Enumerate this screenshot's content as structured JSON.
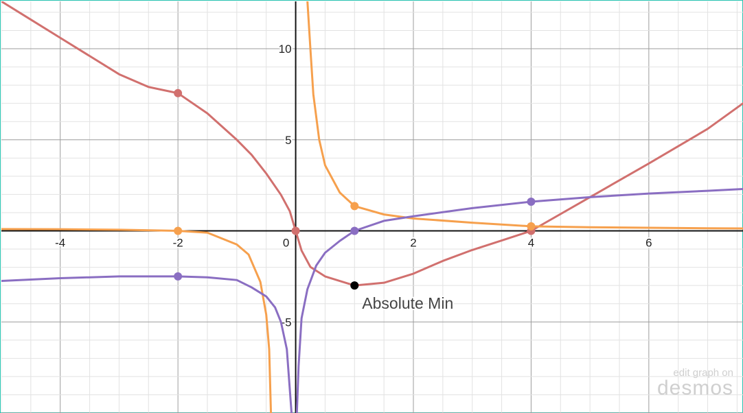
{
  "watermark": {
    "line1": "edit graph on",
    "logo": "desmos"
  },
  "chart_data": {
    "type": "line",
    "xlim": [
      -5,
      7.6
    ],
    "ylim": [
      -10,
      12.6
    ],
    "grid": true,
    "minor_grid": true,
    "x_ticks": [
      -4,
      -2,
      0,
      2,
      4,
      6
    ],
    "y_ticks": [
      -5,
      5,
      10
    ],
    "x_tick_labels": [
      "-4",
      "-2",
      "0",
      "2",
      "4",
      "6"
    ],
    "y_tick_labels": [
      "-5",
      "5",
      "10"
    ],
    "colors": {
      "red": "#d1706e",
      "orange": "#f6a04d",
      "purple": "#8a6ec2",
      "black": "#000000"
    },
    "series": [
      {
        "id": "red",
        "color": "#d1706e",
        "x": [
          -5,
          -4.5,
          -4,
          -3.5,
          -3,
          -2.5,
          -2,
          -1.5,
          -1,
          -0.75,
          -0.5,
          -0.25,
          -0.1,
          0,
          0.1,
          0.25,
          0.5,
          1,
          1.5,
          2,
          2.5,
          3,
          3.5,
          4,
          5,
          6,
          7,
          7.6
        ],
        "y": [
          12.6,
          11.6,
          10.6,
          9.6,
          8.6,
          7.9,
          7.56,
          6.45,
          5.0,
          4.18,
          3.15,
          1.98,
          1.08,
          0,
          -1.08,
          -1.98,
          -2.5,
          -3.0,
          -2.85,
          -2.35,
          -1.65,
          -1.05,
          -0.53,
          0,
          1.85,
          3.7,
          5.6,
          7.0
        ]
      },
      {
        "id": "orange",
        "color": "#f6a04d",
        "x": [
          -5,
          -4,
          -3,
          -2,
          -1.5,
          -1,
          -0.8,
          -0.6,
          -0.5,
          -0.45,
          -0.42,
          "gap",
          0.2,
          0.25,
          0.3,
          0.4,
          0.5,
          0.75,
          1,
          1.5,
          2,
          3,
          4,
          5,
          6,
          7,
          7.6
        ],
        "y": [
          0.1,
          0.09,
          0.06,
          0,
          -0.1,
          -0.75,
          -1.3,
          -2.8,
          -4.6,
          -6.5,
          -10,
          "gap",
          12.6,
          10.0,
          7.5,
          5.0,
          3.6,
          2.1,
          1.36,
          0.9,
          0.68,
          0.45,
          0.25,
          0.2,
          0.17,
          0.14,
          0.13
        ]
      },
      {
        "id": "purple",
        "color": "#8a6ec2",
        "x": [
          -5,
          -4,
          -3,
          -2,
          -1.5,
          -1,
          -0.75,
          -0.5,
          -0.35,
          -0.25,
          -0.15,
          -0.07,
          "gap",
          0.02,
          0.05,
          0.1,
          0.2,
          0.35,
          0.5,
          0.75,
          1,
          1.5,
          2,
          3,
          4,
          5,
          6,
          7,
          7.6
        ],
        "y": [
          -2.75,
          -2.6,
          -2.5,
          -2.5,
          -2.55,
          -2.7,
          -3.1,
          -3.6,
          -4.2,
          -5.0,
          -6.5,
          -10,
          "gap",
          -10,
          -7.4,
          -4.8,
          -3.2,
          -1.9,
          -1.2,
          -0.55,
          0,
          0.55,
          0.8,
          1.25,
          1.6,
          1.85,
          2.05,
          2.2,
          2.3
        ]
      }
    ],
    "points": [
      {
        "x": -2,
        "y": 7.56,
        "color": "#d1706e"
      },
      {
        "x": 0,
        "y": 0,
        "color": "#d1706e"
      },
      {
        "x": 4,
        "y": 0,
        "color": "#d1706e"
      },
      {
        "x": -2,
        "y": 0,
        "color": "#f6a04d"
      },
      {
        "x": 1,
        "y": 1.36,
        "color": "#f6a04d"
      },
      {
        "x": 4,
        "y": 0.25,
        "color": "#f6a04d"
      },
      {
        "x": -2,
        "y": -2.5,
        "color": "#8a6ec2"
      },
      {
        "x": 1,
        "y": 0,
        "color": "#8a6ec2"
      },
      {
        "x": 4,
        "y": 1.6,
        "color": "#8a6ec2"
      },
      {
        "x": 1,
        "y": -3.0,
        "color": "#000000",
        "label": "Absolute Min"
      }
    ]
  }
}
